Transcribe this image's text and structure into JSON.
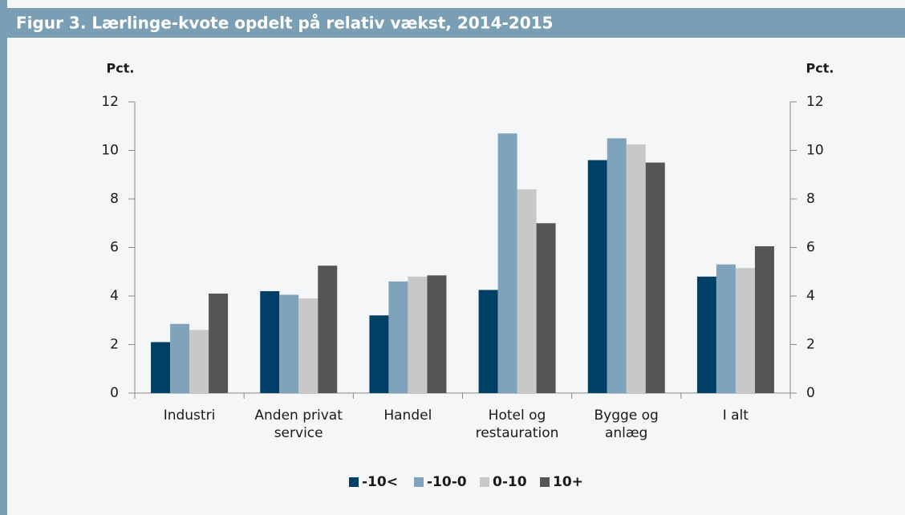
{
  "chart_data": {
    "type": "bar",
    "title": "Figur 3. Lærlinge-kvote opdelt på relativ vækst, 2014-2015",
    "y_label": "Pct.",
    "y2_label": "Pct.",
    "categories": [
      "Industri",
      "Anden privat\nservice",
      "Handel",
      "Hotel og\nrestauration",
      "Bygge og\nanlæg",
      "I alt"
    ],
    "series": [
      {
        "name": "-10<",
        "color": "#003f66",
        "values": [
          2.1,
          4.2,
          3.2,
          4.25,
          9.6,
          4.8
        ]
      },
      {
        "name": "-10-0",
        "color": "#7fa3bb",
        "values": [
          2.85,
          4.05,
          4.6,
          10.7,
          10.5,
          5.3
        ]
      },
      {
        "name": "0-10",
        "color": "#c8c8c8",
        "values": [
          2.6,
          3.9,
          4.8,
          8.4,
          10.25,
          5.15
        ]
      },
      {
        "name": "10+",
        "color": "#555555",
        "values": [
          4.1,
          5.25,
          4.85,
          7.0,
          9.5,
          6.05
        ]
      }
    ],
    "ylim": [
      0,
      12
    ],
    "yticks": [
      0,
      2,
      4,
      6,
      8,
      10,
      12
    ],
    "y2lim": [
      0,
      12
    ],
    "y2ticks": [
      0,
      2,
      4,
      6,
      8,
      10,
      12
    ],
    "grid": false,
    "legend": "bottom"
  }
}
